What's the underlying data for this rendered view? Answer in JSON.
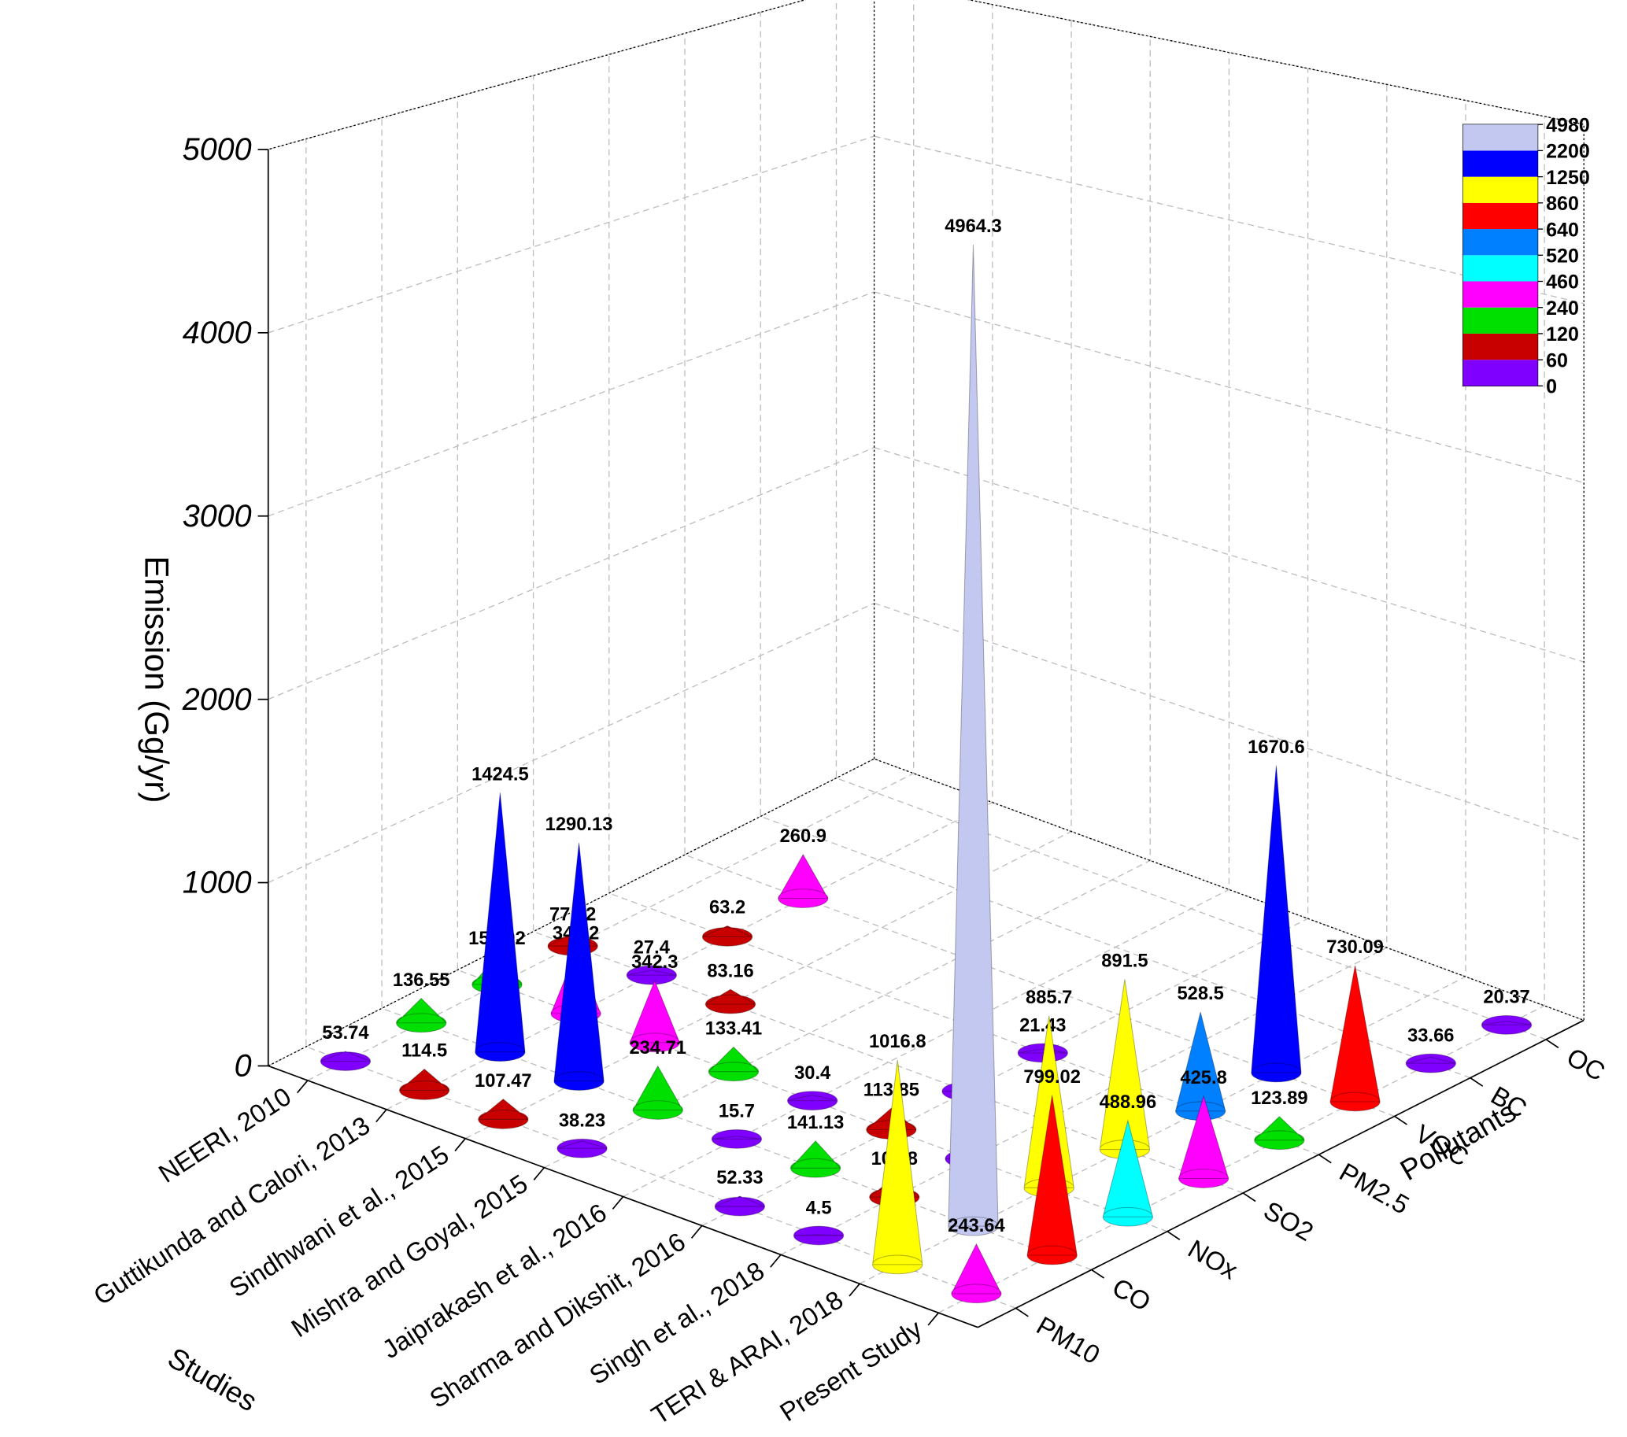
{
  "chart_data": {
    "type": "cone3d",
    "zlabel": "Emission (Gg/yr)",
    "xlabel": "Studies",
    "ylabel": "Pollutants",
    "categories": [
      "NEERI, 2010",
      "Guttikunda and Calori, 2013",
      "Sindhwani et al., 2015",
      "Mishra and Goyal, 2015",
      "Jaiprakash et al., 2016",
      "Sharma and Dikshit, 2016",
      "Singh et al., 2018",
      "TERI & ARAI, 2018",
      "Present Study"
    ],
    "pollutants": [
      "PM10",
      "CO",
      "NOx",
      "SO2",
      "PM2.5",
      "VOC",
      "BC",
      "OC"
    ],
    "values": [
      [
        53.74,
        136.55,
        156.92,
        77.72,
        null,
        null,
        null,
        null
      ],
      [
        114.5,
        1424.5,
        345.2,
        27.4,
        63.2,
        260.9,
        null,
        null
      ],
      [
        107.47,
        1290.13,
        342.3,
        83.16,
        null,
        null,
        null,
        null
      ],
      [
        38.23,
        234.71,
        133.41,
        null,
        null,
        null,
        null,
        null
      ],
      [
        null,
        15.7,
        30.4,
        null,
        null,
        null,
        null,
        null
      ],
      [
        52.33,
        141.13,
        113.85,
        5.6,
        21.43,
        null,
        null,
        null
      ],
      [
        4.5,
        101.8,
        5.5,
        null,
        null,
        null,
        null,
        null
      ],
      [
        1016.8,
        4964.3,
        885.7,
        891.5,
        528.5,
        1670.6,
        null,
        null
      ],
      [
        243.64,
        799.02,
        488.96,
        425.8,
        123.89,
        730.09,
        33.66,
        20.37
      ]
    ],
    "zlim": [
      0,
      5000
    ],
    "zticks": [
      0,
      1000,
      2000,
      3000,
      4000,
      5000
    ],
    "grid": true,
    "colorscale": {
      "levels": [
        0,
        60,
        120,
        240,
        460,
        520,
        640,
        860,
        1250,
        2200,
        4980
      ],
      "colors": [
        "#8000ff",
        "#c80000",
        "#00e000",
        "#ff00ff",
        "#00ffff",
        "#0080ff",
        "#ff0000",
        "#ffff00",
        "#0000ff",
        "#c2c8f0"
      ]
    }
  }
}
